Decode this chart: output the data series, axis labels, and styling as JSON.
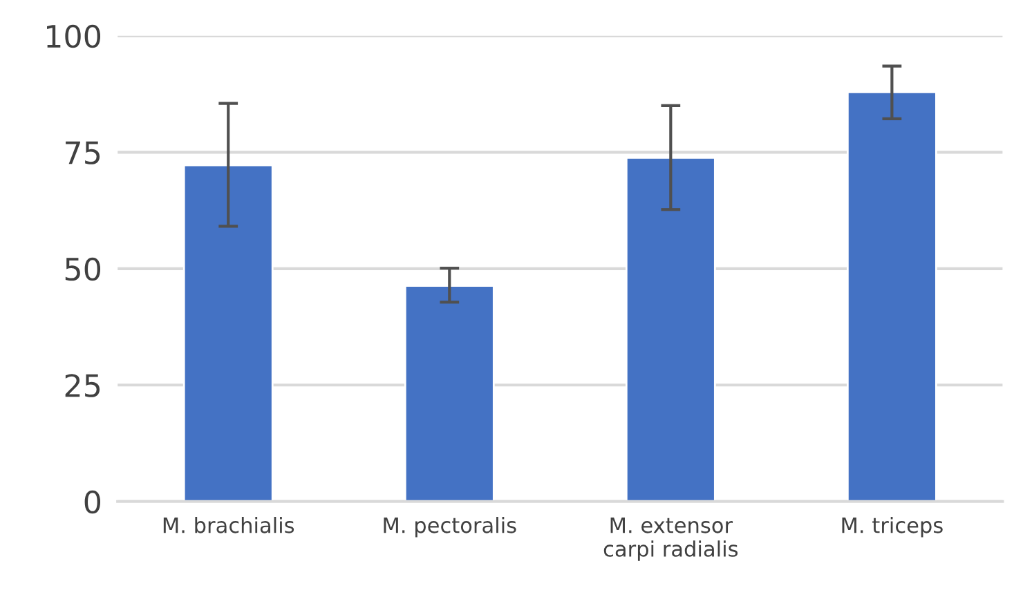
{
  "chart_data": {
    "type": "bar",
    "categories": [
      "M. brachialis",
      "M. pectoralis",
      "M. extensor\ncarpi radialis",
      "M. triceps"
    ],
    "values": [
      72.2,
      46.3,
      73.8,
      87.9
    ],
    "errors": [
      [
        59.1,
        85.5
      ],
      [
        42.8,
        50.1
      ],
      [
        62.7,
        85.0
      ],
      [
        82.2,
        93.5
      ]
    ],
    "color": "#4472c4",
    "ylim": [
      0,
      100
    ],
    "yticks": [
      0,
      25,
      50,
      75,
      100
    ],
    "grid": "y"
  }
}
